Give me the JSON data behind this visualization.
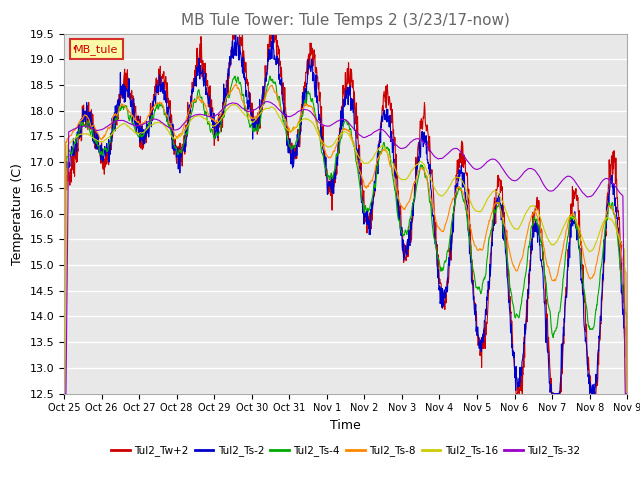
{
  "title": "MB Tule Tower: Tule Temps 2 (3/23/17-now)",
  "xlabel": "Time",
  "ylabel": "Temperature (C)",
  "ylim": [
    12.5,
    19.5
  ],
  "yticks": [
    12.5,
    13.0,
    13.5,
    14.0,
    14.5,
    15.0,
    15.5,
    16.0,
    16.5,
    17.0,
    17.5,
    18.0,
    18.5,
    19.0,
    19.5
  ],
  "xlabels": [
    "Oct 25",
    "Oct 26",
    "Oct 27",
    "Oct 28",
    "Oct 29",
    "Oct 30",
    "Oct 31",
    "Nov 1",
    "Nov 2",
    "Nov 3",
    "Nov 4",
    "Nov 5",
    "Nov 6",
    "Nov 7",
    "Nov 8",
    "Nov 9"
  ],
  "legend_label": "MB_tule",
  "series_labels": [
    "Tul2_Tw+2",
    "Tul2_Ts-2",
    "Tul2_Ts-4",
    "Tul2_Ts-8",
    "Tul2_Ts-16",
    "Tul2_Ts-32"
  ],
  "series_colors": [
    "#cc0000",
    "#0000cc",
    "#00aa00",
    "#ff8800",
    "#cccc00",
    "#9900cc"
  ],
  "background_color": "#ffffff",
  "plot_bg_color": "#e8e8e8",
  "grid_color": "#ffffff",
  "title_color": "#666666",
  "title_fontsize": 11,
  "axis_fontsize": 9,
  "tick_fontsize": 8
}
